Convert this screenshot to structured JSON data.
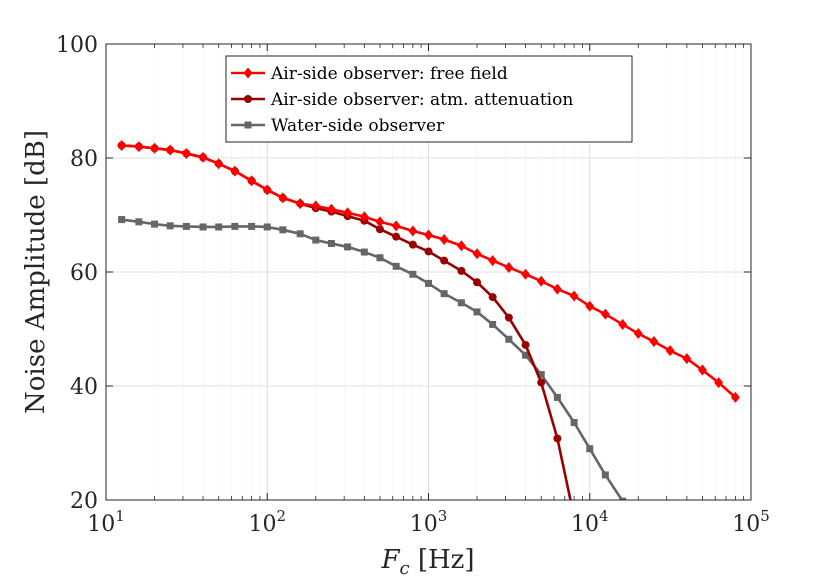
{
  "chart_data": {
    "type": "line",
    "xscale": "log",
    "xlim": [
      10,
      100000
    ],
    "ylim": [
      20,
      100
    ],
    "xticks": [
      {
        "value": 10,
        "base": "10",
        "exp": "1"
      },
      {
        "value": 100,
        "base": "10",
        "exp": "2"
      },
      {
        "value": 1000,
        "base": "10",
        "exp": "3"
      },
      {
        "value": 10000,
        "base": "10",
        "exp": "4"
      },
      {
        "value": 100000,
        "base": "10",
        "exp": "5"
      }
    ],
    "yticks": [
      {
        "value": 20,
        "label": "20"
      },
      {
        "value": 40,
        "label": "40"
      },
      {
        "value": 60,
        "label": "60"
      },
      {
        "value": 80,
        "label": "80"
      },
      {
        "value": 100,
        "label": "100"
      }
    ],
    "xlabel_main": "F",
    "xlabel_sub": "c",
    "xlabel_unit": " [Hz]",
    "ylabel": "Noise Amplitude [dB]",
    "grid": true,
    "legend_position": "top",
    "series": [
      {
        "name": "Air-side observer: free field",
        "color": "#ff0000",
        "marker": "diamond",
        "x": [
          12.5,
          16,
          20,
          25,
          31.5,
          40,
          50,
          63,
          80,
          100,
          125,
          160,
          200,
          250,
          315,
          400,
          500,
          630,
          800,
          1000,
          1250,
          1600,
          2000,
          2500,
          3150,
          4000,
          5000,
          6300,
          8000,
          10000,
          12500,
          16000,
          20000,
          25000,
          31500,
          40000,
          50000,
          63000,
          80000
        ],
        "y": [
          82.2,
          82.0,
          81.7,
          81.4,
          80.8,
          80.1,
          79.0,
          77.7,
          76.0,
          74.4,
          73.0,
          72.0,
          71.6,
          71.0,
          70.4,
          69.7,
          68.8,
          68.1,
          67.2,
          66.5,
          65.7,
          64.6,
          63.2,
          62.0,
          60.8,
          59.6,
          58.4,
          57.0,
          55.8,
          54.0,
          52.6,
          50.8,
          49.2,
          47.8,
          46.2,
          44.8,
          42.8,
          40.6,
          38.0
        ]
      },
      {
        "name": "Air-side observer: atm. attenuation",
        "color": "#990000",
        "marker": "circle",
        "x": [
          12.5,
          16,
          20,
          25,
          31.5,
          40,
          50,
          63,
          80,
          100,
          125,
          160,
          200,
          250,
          315,
          400,
          500,
          630,
          800,
          1000,
          1250,
          1600,
          2000,
          2500,
          3150,
          4000,
          5000,
          6300,
          8000
        ],
        "y": [
          82.2,
          82.0,
          81.7,
          81.4,
          80.8,
          80.1,
          79.0,
          77.7,
          76.0,
          74.4,
          73.0,
          72.0,
          71.2,
          70.6,
          69.8,
          69.0,
          67.5,
          66.2,
          64.8,
          63.6,
          62.0,
          60.2,
          58.2,
          55.6,
          52.0,
          47.2,
          40.6,
          30.8,
          17.0
        ]
      },
      {
        "name": "Water-side observer",
        "color": "#666666",
        "marker": "square",
        "x": [
          12.5,
          16,
          20,
          25,
          31.5,
          40,
          50,
          63,
          80,
          100,
          125,
          160,
          200,
          250,
          315,
          400,
          500,
          630,
          800,
          1000,
          1250,
          1600,
          2000,
          2500,
          3150,
          4000,
          5000,
          6300,
          8000,
          10000,
          12500,
          16000
        ],
        "y": [
          69.2,
          68.8,
          68.4,
          68.1,
          68.0,
          67.9,
          67.9,
          68.0,
          68.0,
          67.9,
          67.4,
          66.7,
          65.6,
          65.0,
          64.4,
          63.5,
          62.5,
          61.0,
          59.6,
          58.0,
          56.2,
          54.6,
          53.0,
          50.8,
          48.2,
          45.4,
          42.0,
          38.0,
          33.6,
          29.0,
          24.4,
          19.8
        ]
      }
    ]
  }
}
